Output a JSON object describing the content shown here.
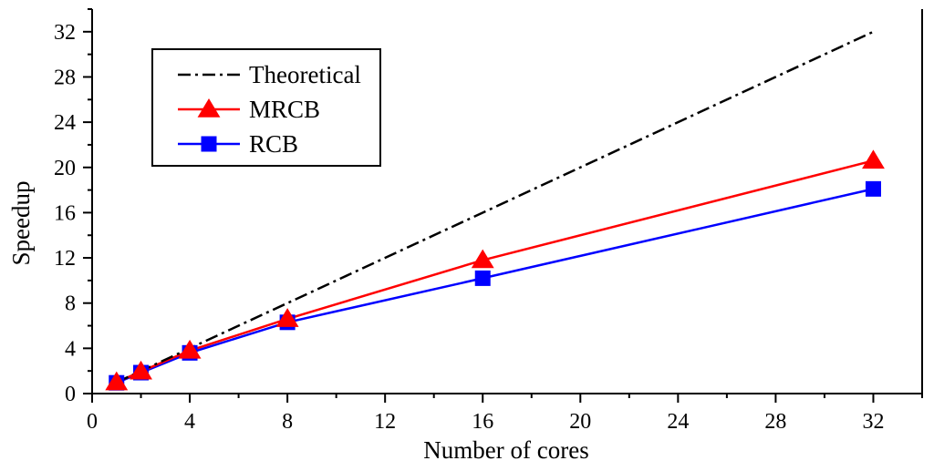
{
  "chart_data": {
    "type": "line",
    "title": "",
    "xlabel": "Number of cores",
    "ylabel": "Speedup",
    "xlim": [
      0,
      34
    ],
    "ylim": [
      0,
      34
    ],
    "xticks": [
      0,
      4,
      8,
      12,
      16,
      20,
      24,
      28,
      32
    ],
    "yticks": [
      0,
      4,
      8,
      12,
      16,
      20,
      24,
      28,
      32
    ],
    "grid": false,
    "legend_position": "top-left",
    "series": [
      {
        "name": "Theoretical",
        "color": "#000000",
        "line_style": "dash-dot",
        "marker": "none",
        "x": [
          1,
          32
        ],
        "values": [
          1,
          32
        ]
      },
      {
        "name": "MRCB",
        "color": "#ff0000",
        "line_style": "solid",
        "marker": "triangle",
        "x": [
          1,
          2,
          4,
          8,
          16,
          32
        ],
        "values": [
          1.0,
          1.95,
          3.8,
          6.6,
          11.8,
          20.6
        ]
      },
      {
        "name": "RCB",
        "color": "#0000ff",
        "line_style": "solid",
        "marker": "square",
        "x": [
          1,
          2,
          4,
          8,
          16,
          32
        ],
        "values": [
          0.95,
          1.85,
          3.6,
          6.3,
          10.2,
          18.1
        ]
      }
    ]
  }
}
